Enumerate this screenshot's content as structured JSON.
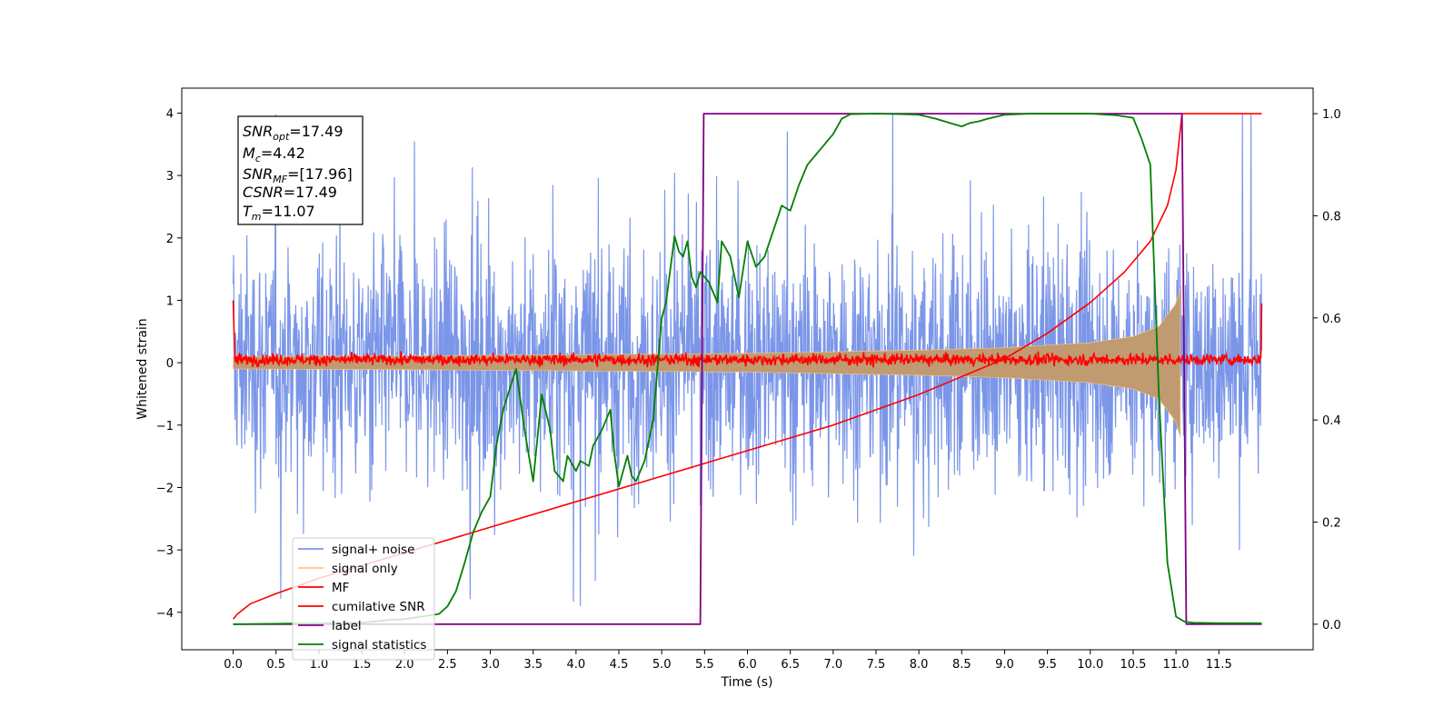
{
  "chart_data": {
    "type": "line",
    "xlabel": "Time (s)",
    "ylabel": "Whitened strain",
    "xlim": [
      -0.6,
      12.6
    ],
    "ylim": [
      -4.6,
      4.4
    ],
    "y2lim": [
      -0.05,
      1.05
    ],
    "x_ticks": [
      "0.0",
      "0.5",
      "1.0",
      "1.5",
      "2.0",
      "2.5",
      "3.0",
      "3.5",
      "4.0",
      "4.5",
      "5.0",
      "5.5",
      "6.0",
      "6.5",
      "7.0",
      "7.5",
      "8.0",
      "8.5",
      "9.0",
      "9.5",
      "10.0",
      "10.5",
      "11.0",
      "11.5"
    ],
    "y_ticks": [
      "4",
      "3",
      "2",
      "1",
      "0",
      "−1",
      "−2",
      "−3",
      "−4"
    ],
    "y2_ticks": [
      "1.0",
      "0.8",
      "0.6",
      "0.4",
      "0.2",
      "0.0"
    ],
    "colors": {
      "signal_noise": "#7b96e8",
      "signal_only": "#ffc77a",
      "signal_only_fill": "#c09a70",
      "mf": "#ff0000",
      "cumulative_snr": "#ff0000",
      "label": "#800080",
      "signal_statistics": "#008000"
    },
    "annotation": {
      "snr_opt": {
        "main": "SNR",
        "sub": "opt",
        "value": "=17.49"
      },
      "mc": {
        "main": "M",
        "sub": "c",
        "value": "=4.42"
      },
      "snr_mf": {
        "main": "SNR",
        "sub": "MF",
        "value": "=[17.96]"
      },
      "csnr": {
        "main": "CSNR",
        "value": "=17.49"
      },
      "tm": {
        "main": "T",
        "sub": "m",
        "value": "=11.07"
      }
    },
    "legend": {
      "placement": "lower-left",
      "items": [
        {
          "label": "signal+ noise",
          "color": "#7b96e8"
        },
        {
          "label": "signal only",
          "color": "#ffc77a"
        },
        {
          "label": "MF",
          "color": "#ff0000"
        },
        {
          "label": "cumilative SNR",
          "color": "#ff0000"
        },
        {
          "label": "label",
          "color": "#800080"
        },
        {
          "label": "signal statistics",
          "color": "#008000"
        }
      ]
    },
    "series": [
      {
        "name": "signal+ noise",
        "axis": "left",
        "description_values": "noise band approx ±2 std, spikes to ±4",
        "x_range": [
          0.0,
          12.0
        ],
        "amplitude_envelope": 1.7,
        "peak": 3.98
      },
      {
        "name": "signal only",
        "axis": "left",
        "x": [
          0.0,
          2.0,
          4.0,
          6.0,
          8.0,
          9.0,
          10.0,
          10.5,
          10.8,
          11.0,
          11.05
        ],
        "envelope": [
          0.1,
          0.11,
          0.13,
          0.15,
          0.2,
          0.24,
          0.32,
          0.42,
          0.58,
          0.95,
          1.2
        ]
      },
      {
        "name": "MF",
        "axis": "left",
        "x_range": [
          0.0,
          12.0
        ],
        "level": 0.05,
        "start_value": 1.0,
        "end_value": 0.95
      },
      {
        "name": "cumilative SNR",
        "axis": "right",
        "x": [
          0.0,
          0.05,
          0.2,
          0.5,
          1.0,
          2.0,
          3.0,
          4.0,
          5.0,
          6.0,
          7.0,
          8.0,
          9.0,
          9.5,
          10.0,
          10.4,
          10.7,
          10.9,
          11.0,
          11.07,
          12.0
        ],
        "y": [
          0.01,
          0.02,
          0.04,
          0.06,
          0.09,
          0.14,
          0.19,
          0.24,
          0.29,
          0.34,
          0.39,
          0.45,
          0.52,
          0.57,
          0.63,
          0.69,
          0.75,
          0.82,
          0.89,
          1.0,
          1.0
        ]
      },
      {
        "name": "label",
        "axis": "right",
        "x": [
          0.0,
          5.45,
          5.49,
          11.07,
          11.12,
          12.0
        ],
        "y": [
          0.0,
          0.0,
          1.0,
          1.0,
          0.0,
          0.0
        ]
      },
      {
        "name": "signal statistics",
        "axis": "right",
        "x": [
          0.0,
          0.5,
          1.0,
          1.5,
          1.8,
          2.0,
          2.2,
          2.4,
          2.5,
          2.6,
          2.7,
          2.8,
          2.9,
          3.0,
          3.07,
          3.15,
          3.3,
          3.4,
          3.5,
          3.6,
          3.7,
          3.75,
          3.85,
          3.9,
          4.0,
          4.05,
          4.15,
          4.2,
          4.3,
          4.4,
          4.45,
          4.5,
          4.6,
          4.65,
          4.7,
          4.8,
          4.9,
          5.0,
          5.05,
          5.15,
          5.2,
          5.25,
          5.3,
          5.35,
          5.4,
          5.45,
          5.55,
          5.65,
          5.7,
          5.8,
          5.9,
          6.0,
          6.1,
          6.2,
          6.3,
          6.4,
          6.5,
          6.6,
          6.7,
          6.8,
          6.9,
          7.0,
          7.1,
          7.2,
          7.5,
          7.8,
          8.0,
          8.2,
          8.4,
          8.5,
          8.6,
          8.7,
          8.8,
          9.0,
          9.3,
          9.6,
          9.8,
          10.0,
          10.3,
          10.5,
          10.6,
          10.7,
          10.8,
          10.9,
          11.0,
          11.1,
          11.2,
          11.5,
          12.0
        ],
        "y": [
          0.0,
          0.001,
          0.002,
          0.003,
          0.008,
          0.01,
          0.015,
          0.02,
          0.035,
          0.065,
          0.12,
          0.18,
          0.22,
          0.25,
          0.35,
          0.42,
          0.5,
          0.38,
          0.28,
          0.45,
          0.38,
          0.3,
          0.28,
          0.33,
          0.3,
          0.32,
          0.31,
          0.35,
          0.38,
          0.42,
          0.33,
          0.27,
          0.33,
          0.29,
          0.28,
          0.32,
          0.4,
          0.6,
          0.63,
          0.76,
          0.73,
          0.72,
          0.75,
          0.68,
          0.66,
          0.69,
          0.67,
          0.63,
          0.75,
          0.72,
          0.64,
          0.75,
          0.7,
          0.72,
          0.77,
          0.82,
          0.81,
          0.86,
          0.9,
          0.92,
          0.94,
          0.96,
          0.99,
          0.999,
          1.0,
          0.999,
          0.998,
          0.99,
          0.98,
          0.975,
          0.982,
          0.985,
          0.99,
          0.998,
          1.0,
          1.0,
          1.0,
          1.0,
          0.997,
          0.992,
          0.95,
          0.9,
          0.45,
          0.12,
          0.015,
          0.005,
          0.003,
          0.002,
          0.002
        ]
      }
    ]
  }
}
